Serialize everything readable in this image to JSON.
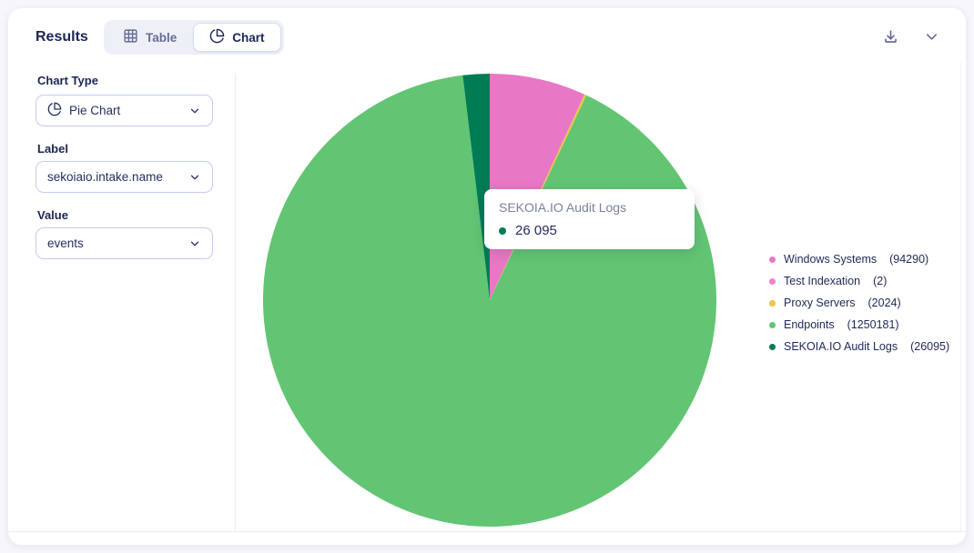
{
  "header": {
    "title": "Results",
    "tabs": [
      {
        "label": "Table",
        "icon": "table-icon",
        "active": false
      },
      {
        "label": "Chart",
        "icon": "pie-chart-icon",
        "active": true
      }
    ],
    "action_icons": [
      "download-icon",
      "chevron-down-icon"
    ]
  },
  "sidebar": {
    "chart_type": {
      "label": "Chart Type",
      "value": "Pie Chart",
      "icon": "pie-chart-icon"
    },
    "label_field": {
      "label": "Label",
      "value": "sekoiaio.intake.name"
    },
    "value_field": {
      "label": "Value",
      "value": "events"
    }
  },
  "tooltip": {
    "title": "SEKOIA.IO Audit Logs",
    "value": "26 095",
    "dot_color": "#007c55"
  },
  "chart_data": {
    "type": "pie",
    "categories": [
      "Windows Systems",
      "Test Indexation",
      "Proxy Servers",
      "Endpoints",
      "SEKOIA.IO Audit Logs"
    ],
    "values": [
      94290,
      2,
      2024,
      1250181,
      26095
    ],
    "colors": [
      "#e878c5",
      "#ec85c9",
      "#efc341",
      "#62c573",
      "#007c55"
    ],
    "title": "",
    "legend_position": "right",
    "start_angle_deg": 0,
    "direction": "clockwise",
    "label_field": "sekoiaio.intake.name",
    "value_field": "events"
  },
  "colors": {
    "text_navy": "#1c2554",
    "text_slate": "#666d93",
    "divider": "#ededf5",
    "select_border": "#c7cbef"
  }
}
